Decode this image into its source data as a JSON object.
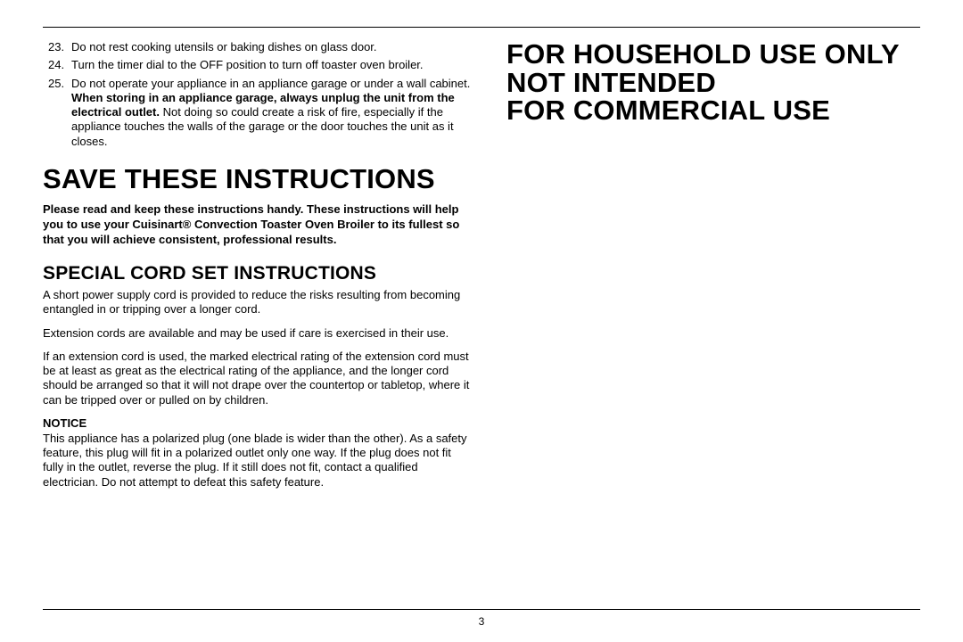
{
  "list": {
    "items": [
      {
        "n": "23.",
        "text": "Do not rest cooking utensils or baking dishes on glass door."
      },
      {
        "n": "24.",
        "text": "Turn the timer dial to the OFF position to turn off toaster oven broiler."
      },
      {
        "n": "25.",
        "pre": "Do not operate your appliance in an appliance garage or under a wall cabinet. ",
        "bold": "When storing in an appliance garage, always unplug the unit from the electrical outlet.",
        "post": " Not doing so could create a risk of fire, especially if the appliance touches the walls of the garage or the door touches the unit as it closes."
      }
    ]
  },
  "h1_save": "SAVE THESE INSTRUCTIONS",
  "please": {
    "pre": "Please read and keep these instructions handy. These instructions will help you to use your Cuisinart",
    "reg": "®",
    "post": " Convection Toaster Oven Broiler to its fullest so that you will achieve consistent, professional results."
  },
  "h2_cord": "SPECIAL CORD SET INSTRUCTIONS",
  "cord_p1": "A short power supply cord is provided to reduce the risks resulting from becoming entangled in or tripping over a longer cord.",
  "cord_p2": "Extension cords are available and may be used if care is exercised in their use.",
  "cord_p3": "If an extension cord is used, the marked electrical rating of the extension cord must be at least as great as the electrical rating of the appliance, and the longer cord should be arranged so that it will not drape over the countertop or tabletop, where it can be tripped over or pulled on by children.",
  "notice_label": "NOTICE",
  "notice_body": "This appliance has a polarized plug (one blade is wider than the other). As a safety feature, this plug will fit in a polarized outlet only one way. If the plug does not fit fully in the outlet, reverse the plug. If it still does not fit, contact a qualified electrician. Do not attempt to defeat this safety feature.",
  "right_line1": "FOR HOUSEHOLD USE ONLY",
  "right_line2": "NOT INTENDED",
  "right_line3": "FOR COMMERCIAL USE",
  "page_number": "3"
}
